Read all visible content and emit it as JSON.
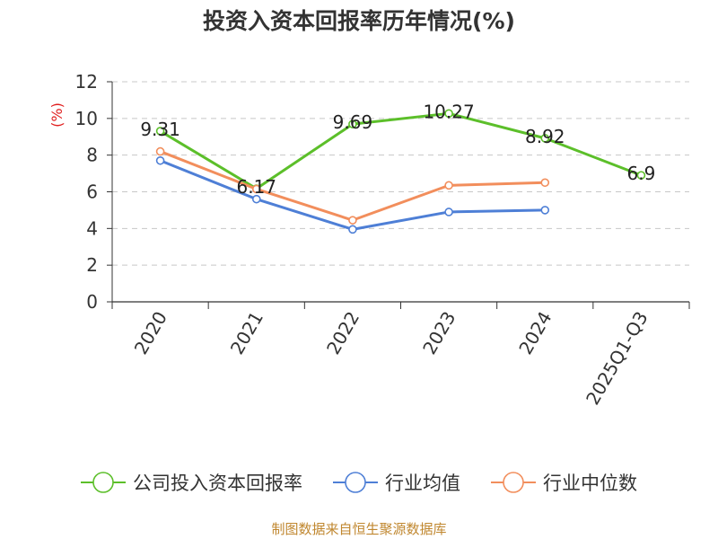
{
  "chart_data": {
    "type": "line",
    "title": "投资入资本回报率历年情况(%)",
    "ylabel": "(%)",
    "xlabel": "",
    "categories": [
      "2020",
      "2021",
      "2022",
      "2023",
      "2024",
      "2025Q1-Q3"
    ],
    "ylim": [
      0,
      12
    ],
    "yticks": [
      "0",
      "2",
      "4",
      "6",
      "8",
      "10",
      "12"
    ],
    "grid": true,
    "legend_position": "bottom",
    "series": [
      {
        "name": "公司投入资本回报率",
        "color": "#5cbf2a",
        "values": [
          9.31,
          6.17,
          9.69,
          10.27,
          8.92,
          6.9
        ],
        "labels": [
          "9.31",
          "6.17",
          "9.69",
          "10.27",
          "8.92",
          "6.9"
        ]
      },
      {
        "name": "行业均值",
        "color": "#4e7fd6",
        "values": [
          7.7,
          5.6,
          3.95,
          4.9,
          5.0,
          null
        ]
      },
      {
        "name": "行业中位数",
        "color": "#f28e5c",
        "values": [
          8.2,
          6.15,
          4.45,
          6.35,
          6.5,
          null
        ]
      }
    ]
  },
  "footer": {
    "source_text": "制图数据来自恒生聚源数据库"
  }
}
